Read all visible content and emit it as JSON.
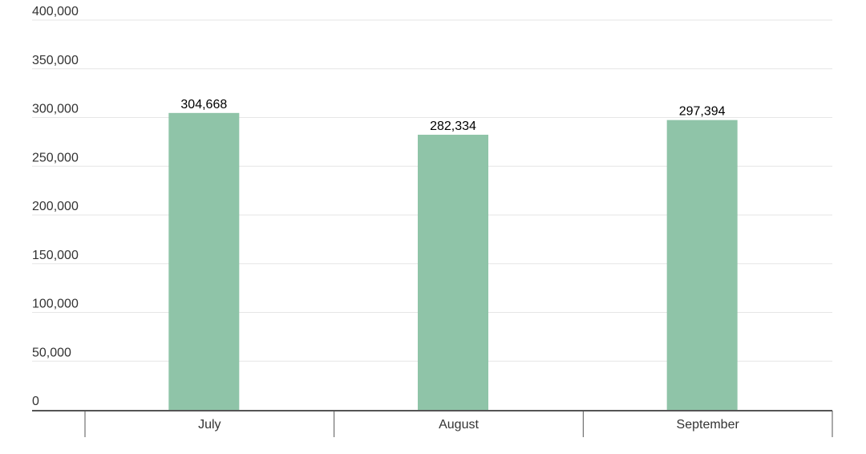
{
  "chart_data": {
    "type": "bar",
    "title": "",
    "xlabel": "",
    "ylabel": "",
    "categories": [
      "July",
      "August",
      "September"
    ],
    "values": [
      304668,
      282334,
      297394
    ],
    "data_labels": [
      "304,668",
      "282,334",
      "297,394"
    ],
    "ylim": [
      0,
      400000
    ],
    "y_ticks": [
      0,
      50000,
      100000,
      150000,
      200000,
      250000,
      300000,
      350000,
      400000
    ],
    "y_tick_labels": [
      "0",
      "50,000",
      "100,000",
      "150,000",
      "200,000",
      "250,000",
      "300,000",
      "350,000",
      "400,000"
    ],
    "grid": true,
    "legend": "none",
    "colors": {
      "bar": "#8fc4a8",
      "grid": "#e6e6e6",
      "axis": "#555555",
      "text": "#333333"
    }
  }
}
